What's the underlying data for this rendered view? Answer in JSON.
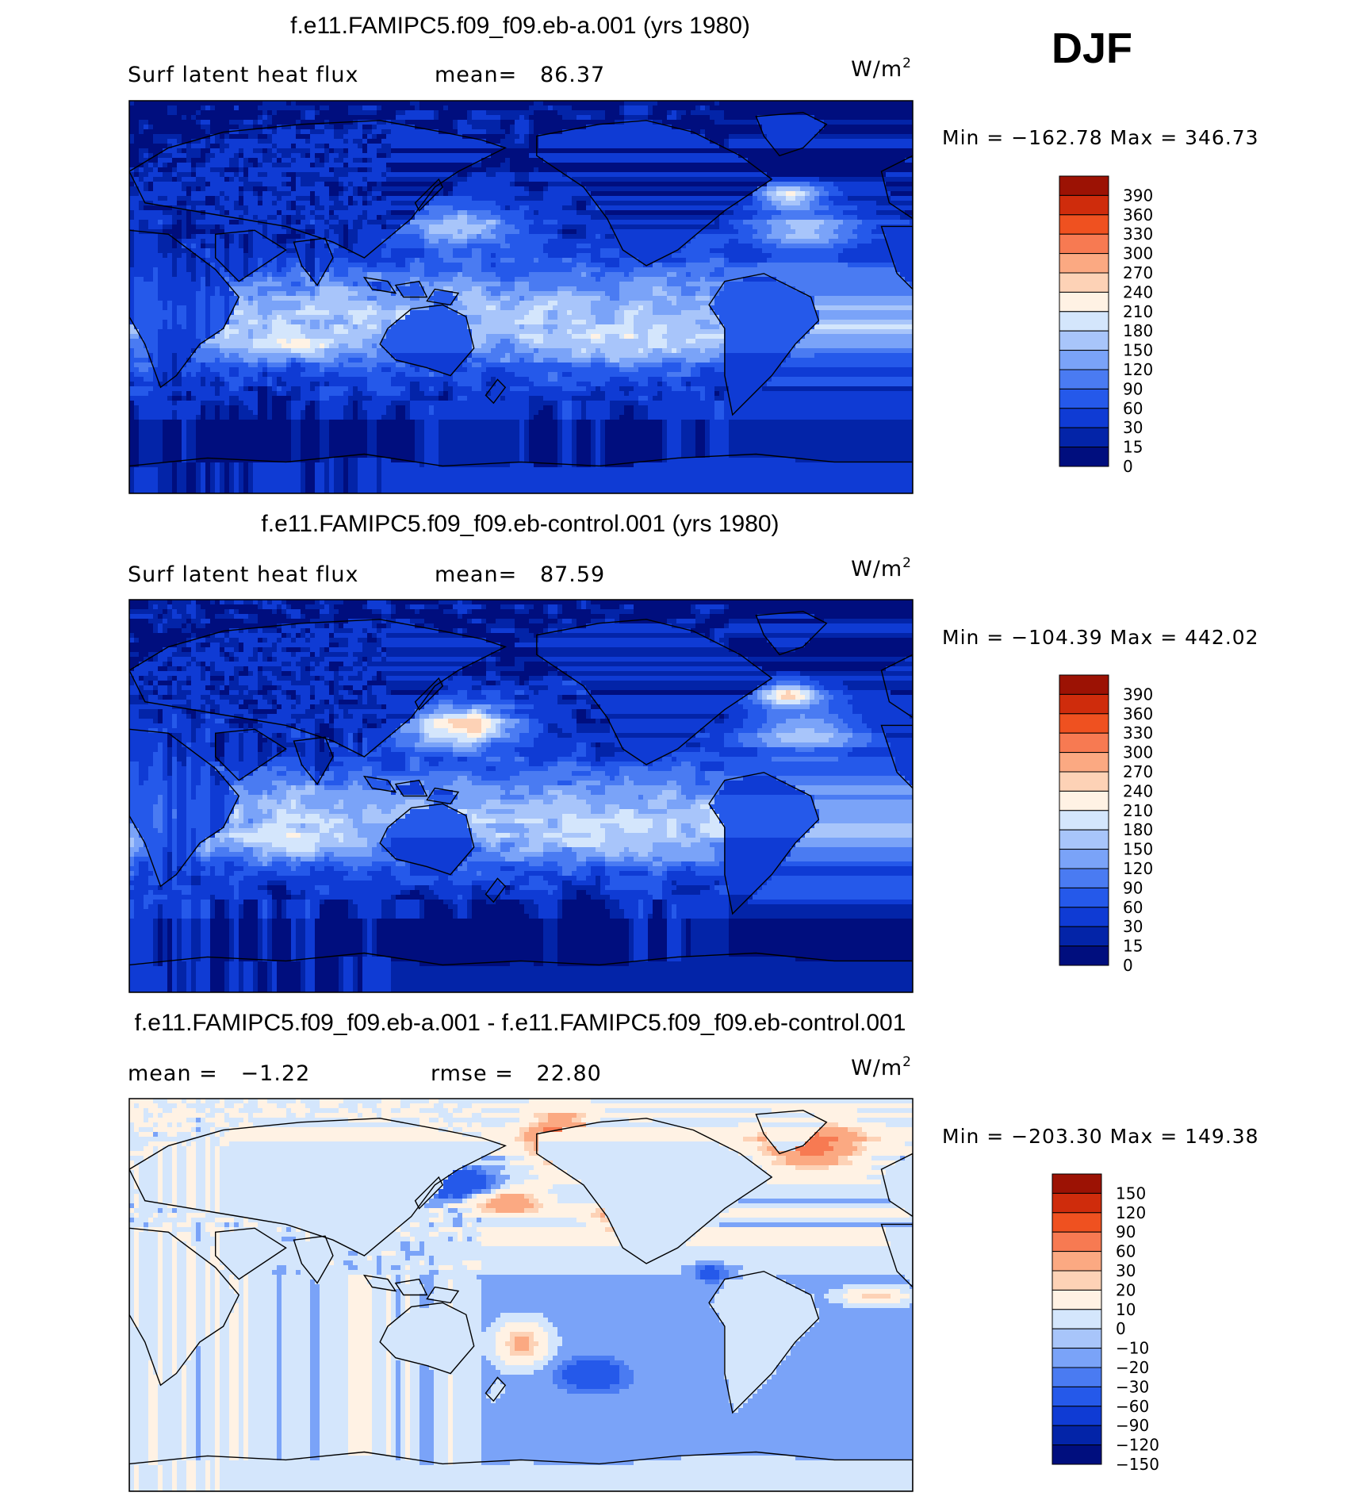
{
  "season": "DJF",
  "palettes": {
    "abs": [
      "#000e7e",
      "#0324a8",
      "#0f3bd4",
      "#2559ea",
      "#4a7bf2",
      "#7aa3f8",
      "#a8c5fa",
      "#d4e6fc",
      "#fff2e4",
      "#fdd2b6",
      "#fba982",
      "#f77a52",
      "#ef5120",
      "#cf2c0c",
      "#9c1204"
    ],
    "diff": [
      "#000e7e",
      "#0324a8",
      "#0f3bd4",
      "#2559ea",
      "#4a7bf2",
      "#7aa3f8",
      "#a8c5fa",
      "#d4e6fc",
      "#fff2e4",
      "#fdd2b6",
      "#fba982",
      "#f77a52",
      "#ef5120",
      "#cf2c0c",
      "#9c1204"
    ]
  },
  "panels": [
    {
      "title": "f.e11.FAMIPC5.f09_f09.eb-a.001 (yrs 1980)",
      "variable": "Surf latent heat flux",
      "stat1": "mean=   86.37",
      "stat2": "",
      "units": "W/m",
      "units_sup": "2",
      "minmax": "Min = −162.78 Max = 346.73",
      "colorbar_labels": [
        "390",
        "360",
        "330",
        "300",
        "270",
        "240",
        "210",
        "180",
        "150",
        "120",
        "90",
        "60",
        "30",
        "15",
        "0"
      ],
      "palette": "abs",
      "kind": "abs",
      "seed": 11
    },
    {
      "title": "f.e11.FAMIPC5.f09_f09.eb-control.001 (yrs 1980)",
      "variable": "Surf latent heat flux",
      "stat1": "mean=   87.59",
      "stat2": "",
      "units": "W/m",
      "units_sup": "2",
      "minmax": "Min = −104.39 Max = 442.02",
      "colorbar_labels": [
        "390",
        "360",
        "330",
        "300",
        "270",
        "240",
        "210",
        "180",
        "150",
        "120",
        "90",
        "60",
        "30",
        "15",
        "0"
      ],
      "palette": "abs",
      "kind": "abs",
      "seed": 23
    },
    {
      "title": "f.e11.FAMIPC5.f09_f09.eb-a.001 - f.e11.FAMIPC5.f09_f09.eb-control.001",
      "variable": "",
      "stat1": "mean =   −1.22",
      "stat2": "rmse =   22.80",
      "units": "W/m",
      "units_sup": "2",
      "minmax": "Min = −203.30 Max = 149.38",
      "colorbar_labels": [
        "150",
        "120",
        "90",
        "60",
        "30",
        "20",
        "10",
        "0",
        "−10",
        "−20",
        "−30",
        "−60",
        "−90",
        "−120",
        "−150"
      ],
      "palette": "diff",
      "kind": "diff",
      "seed": 37
    }
  ],
  "chart_data": [
    {
      "type": "heatmap",
      "title": "f.e11.FAMIPC5.f09_f09.eb-a.001 (yrs 1980)",
      "subtitle": "Surf latent heat flux",
      "units": "W/m2",
      "mean": 86.37,
      "min": -162.78,
      "max": 346.73,
      "levels": [
        0,
        15,
        30,
        60,
        90,
        120,
        150,
        180,
        210,
        240,
        270,
        300,
        330,
        360,
        390
      ]
    },
    {
      "type": "heatmap",
      "title": "f.e11.FAMIPC5.f09_f09.eb-control.001 (yrs 1980)",
      "subtitle": "Surf latent heat flux",
      "units": "W/m2",
      "mean": 87.59,
      "min": -104.39,
      "max": 442.02,
      "levels": [
        0,
        15,
        30,
        60,
        90,
        120,
        150,
        180,
        210,
        240,
        270,
        300,
        330,
        360,
        390
      ]
    },
    {
      "type": "heatmap",
      "title": "f.e11.FAMIPC5.f09_f09.eb-a.001 - f.e11.FAMIPC5.f09_f09.eb-control.001",
      "units": "W/m2",
      "mean": -1.22,
      "rmse": 22.8,
      "min": -203.3,
      "max": 149.38,
      "levels": [
        -150,
        -120,
        -90,
        -60,
        -30,
        -20,
        -10,
        0,
        10,
        20,
        30,
        60,
        90,
        120,
        150
      ]
    }
  ]
}
